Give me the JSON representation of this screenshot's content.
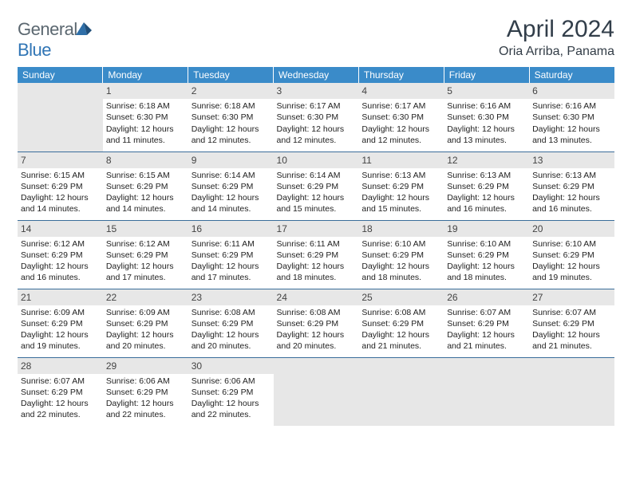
{
  "brand": {
    "part1": "General",
    "part2": "Blue"
  },
  "month_title": "April 2024",
  "location": "Oria Arriba, Panama",
  "styling": {
    "header_bg": "#3a8bc9",
    "header_text": "#ffffff",
    "daynum_bg": "#e7e7e7",
    "empty_bg": "#e7e7e7",
    "row_border": "#3a6d9a",
    "title_color": "#323e4a",
    "body_font_size_pt": 8,
    "title_font_size_pt": 22
  },
  "day_headers": [
    "Sunday",
    "Monday",
    "Tuesday",
    "Wednesday",
    "Thursday",
    "Friday",
    "Saturday"
  ],
  "weeks": [
    [
      null,
      {
        "n": "1",
        "sunrise": "6:18 AM",
        "sunset": "6:30 PM",
        "daylight": "12 hours and 11 minutes."
      },
      {
        "n": "2",
        "sunrise": "6:18 AM",
        "sunset": "6:30 PM",
        "daylight": "12 hours and 12 minutes."
      },
      {
        "n": "3",
        "sunrise": "6:17 AM",
        "sunset": "6:30 PM",
        "daylight": "12 hours and 12 minutes."
      },
      {
        "n": "4",
        "sunrise": "6:17 AM",
        "sunset": "6:30 PM",
        "daylight": "12 hours and 12 minutes."
      },
      {
        "n": "5",
        "sunrise": "6:16 AM",
        "sunset": "6:30 PM",
        "daylight": "12 hours and 13 minutes."
      },
      {
        "n": "6",
        "sunrise": "6:16 AM",
        "sunset": "6:30 PM",
        "daylight": "12 hours and 13 minutes."
      }
    ],
    [
      {
        "n": "7",
        "sunrise": "6:15 AM",
        "sunset": "6:29 PM",
        "daylight": "12 hours and 14 minutes."
      },
      {
        "n": "8",
        "sunrise": "6:15 AM",
        "sunset": "6:29 PM",
        "daylight": "12 hours and 14 minutes."
      },
      {
        "n": "9",
        "sunrise": "6:14 AM",
        "sunset": "6:29 PM",
        "daylight": "12 hours and 14 minutes."
      },
      {
        "n": "10",
        "sunrise": "6:14 AM",
        "sunset": "6:29 PM",
        "daylight": "12 hours and 15 minutes."
      },
      {
        "n": "11",
        "sunrise": "6:13 AM",
        "sunset": "6:29 PM",
        "daylight": "12 hours and 15 minutes."
      },
      {
        "n": "12",
        "sunrise": "6:13 AM",
        "sunset": "6:29 PM",
        "daylight": "12 hours and 16 minutes."
      },
      {
        "n": "13",
        "sunrise": "6:13 AM",
        "sunset": "6:29 PM",
        "daylight": "12 hours and 16 minutes."
      }
    ],
    [
      {
        "n": "14",
        "sunrise": "6:12 AM",
        "sunset": "6:29 PM",
        "daylight": "12 hours and 16 minutes."
      },
      {
        "n": "15",
        "sunrise": "6:12 AM",
        "sunset": "6:29 PM",
        "daylight": "12 hours and 17 minutes."
      },
      {
        "n": "16",
        "sunrise": "6:11 AM",
        "sunset": "6:29 PM",
        "daylight": "12 hours and 17 minutes."
      },
      {
        "n": "17",
        "sunrise": "6:11 AM",
        "sunset": "6:29 PM",
        "daylight": "12 hours and 18 minutes."
      },
      {
        "n": "18",
        "sunrise": "6:10 AM",
        "sunset": "6:29 PM",
        "daylight": "12 hours and 18 minutes."
      },
      {
        "n": "19",
        "sunrise": "6:10 AM",
        "sunset": "6:29 PM",
        "daylight": "12 hours and 18 minutes."
      },
      {
        "n": "20",
        "sunrise": "6:10 AM",
        "sunset": "6:29 PM",
        "daylight": "12 hours and 19 minutes."
      }
    ],
    [
      {
        "n": "21",
        "sunrise": "6:09 AM",
        "sunset": "6:29 PM",
        "daylight": "12 hours and 19 minutes."
      },
      {
        "n": "22",
        "sunrise": "6:09 AM",
        "sunset": "6:29 PM",
        "daylight": "12 hours and 20 minutes."
      },
      {
        "n": "23",
        "sunrise": "6:08 AM",
        "sunset": "6:29 PM",
        "daylight": "12 hours and 20 minutes."
      },
      {
        "n": "24",
        "sunrise": "6:08 AM",
        "sunset": "6:29 PM",
        "daylight": "12 hours and 20 minutes."
      },
      {
        "n": "25",
        "sunrise": "6:08 AM",
        "sunset": "6:29 PM",
        "daylight": "12 hours and 21 minutes."
      },
      {
        "n": "26",
        "sunrise": "6:07 AM",
        "sunset": "6:29 PM",
        "daylight": "12 hours and 21 minutes."
      },
      {
        "n": "27",
        "sunrise": "6:07 AM",
        "sunset": "6:29 PM",
        "daylight": "12 hours and 21 minutes."
      }
    ],
    [
      {
        "n": "28",
        "sunrise": "6:07 AM",
        "sunset": "6:29 PM",
        "daylight": "12 hours and 22 minutes."
      },
      {
        "n": "29",
        "sunrise": "6:06 AM",
        "sunset": "6:29 PM",
        "daylight": "12 hours and 22 minutes."
      },
      {
        "n": "30",
        "sunrise": "6:06 AM",
        "sunset": "6:29 PM",
        "daylight": "12 hours and 22 minutes."
      },
      null,
      null,
      null,
      null
    ]
  ],
  "labels": {
    "sunrise": "Sunrise:",
    "sunset": "Sunset:",
    "daylight": "Daylight:"
  }
}
